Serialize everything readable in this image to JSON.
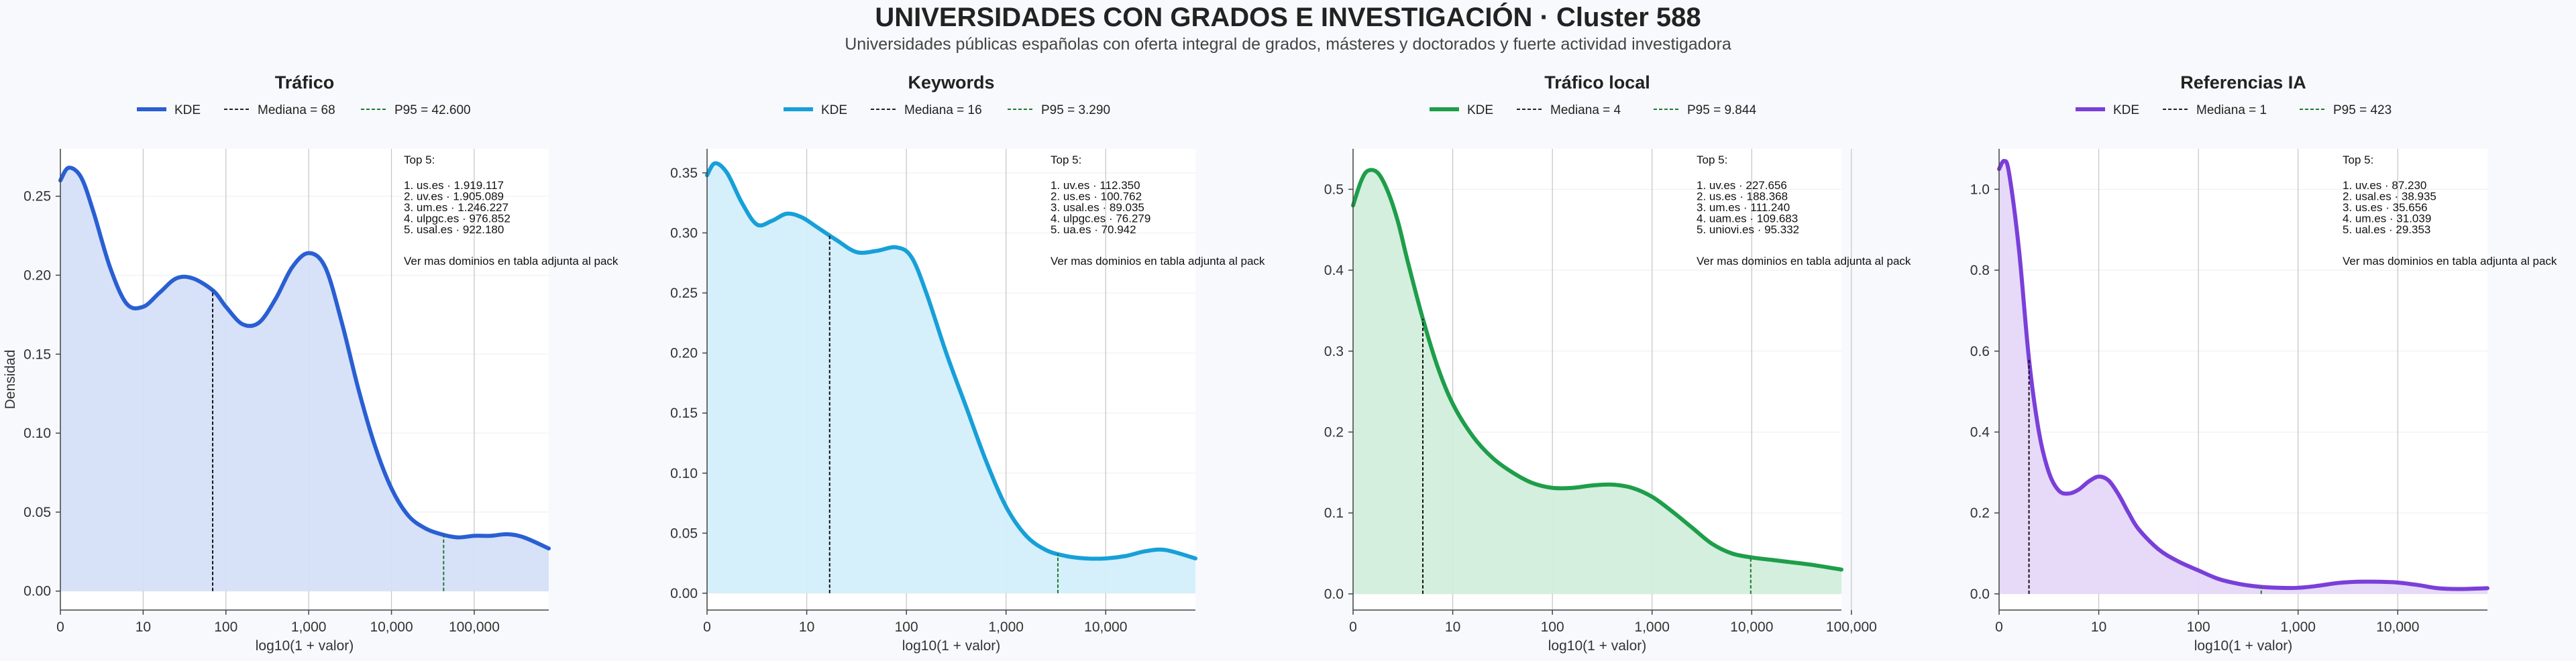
{
  "title": "UNIVERSIDADES CON GRADOS E INVESTIGACIÓN · Cluster 588",
  "subtitle": "Universidades públicas españolas con oferta integral de grados, másteres y doctorados y fuerte actividad investigadora",
  "chart_data": [
    {
      "type": "area",
      "title": "Tráfico",
      "xlabel": "log10(1 + valor)",
      "ylabel": "Densidad",
      "x_scale": "log10(1+x)",
      "xlim": [
        0,
        5.9
      ],
      "ylim": [
        -0.012,
        0.28
      ],
      "x_ticks": [
        0,
        1,
        2,
        3,
        4,
        5
      ],
      "x_tick_labels": [
        "0",
        "10",
        "100",
        "1,000",
        "10,000",
        "100,000"
      ],
      "y_ticks": [
        0,
        0.05,
        0.1,
        0.15,
        0.2,
        0.25
      ],
      "y_tick_labels": [
        "0.00",
        "0.05",
        "0.10",
        "0.15",
        "0.20",
        "0.25"
      ],
      "color": "#2a5fd3",
      "fill_color": "#d5e0f8",
      "legend": [
        "KDE",
        "Mediana = 68",
        "P95 = 42.600"
      ],
      "median_log": 1.84,
      "p95_log": 4.63,
      "series": [
        {
          "name": "KDE",
          "x": [
            0,
            0.1,
            0.25,
            0.4,
            0.6,
            0.8,
            1.0,
            1.2,
            1.4,
            1.6,
            1.85,
            2.0,
            2.2,
            2.4,
            2.6,
            2.8,
            3.0,
            3.2,
            3.4,
            3.6,
            3.8,
            4.0,
            4.2,
            4.4,
            4.6,
            4.8,
            5.0,
            5.2,
            5.4,
            5.6,
            5.9
          ],
          "y": [
            0.26,
            0.268,
            0.262,
            0.24,
            0.205,
            0.182,
            0.18,
            0.189,
            0.198,
            0.198,
            0.19,
            0.18,
            0.169,
            0.17,
            0.185,
            0.205,
            0.214,
            0.205,
            0.17,
            0.128,
            0.092,
            0.065,
            0.048,
            0.04,
            0.036,
            0.034,
            0.035,
            0.035,
            0.036,
            0.034,
            0.027
          ]
        }
      ],
      "top5_heading": "Top 5:",
      "top5": [
        "1. us.es · 1.919.117",
        "2. uv.es · 1.905.089",
        "3. um.es · 1.246.227",
        "4. ulpgc.es · 976.852",
        "5. usal.es · 922.180"
      ],
      "note": "Ver mas dominios en tabla adjunta al pack"
    },
    {
      "type": "area",
      "title": "Keywords",
      "xlabel": "log10(1 + valor)",
      "x_scale": "log10(1+x)",
      "xlim": [
        0,
        4.9
      ],
      "ylim": [
        -0.014,
        0.37
      ],
      "x_ticks": [
        0,
        1,
        2,
        3,
        4
      ],
      "x_tick_labels": [
        "0",
        "10",
        "100",
        "1,000",
        "10,000"
      ],
      "y_ticks": [
        0,
        0.05,
        0.1,
        0.15,
        0.2,
        0.25,
        0.3,
        0.35
      ],
      "y_tick_labels": [
        "0.00",
        "0.05",
        "0.10",
        "0.15",
        "0.20",
        "0.25",
        "0.30",
        "0.35"
      ],
      "color": "#17a0d8",
      "fill_color": "#d3eefb",
      "legend": [
        "KDE",
        "Mediana = 16",
        "P95 = 3.290"
      ],
      "median_log": 1.23,
      "p95_log": 3.52,
      "series": [
        {
          "name": "KDE",
          "x": [
            0,
            0.08,
            0.2,
            0.35,
            0.5,
            0.65,
            0.8,
            0.95,
            1.1,
            1.3,
            1.5,
            1.7,
            1.9,
            2.05,
            2.2,
            2.4,
            2.6,
            2.8,
            3.0,
            3.2,
            3.4,
            3.6,
            3.8,
            4.0,
            4.2,
            4.4,
            4.6,
            4.9
          ],
          "y": [
            0.348,
            0.358,
            0.35,
            0.325,
            0.307,
            0.31,
            0.316,
            0.313,
            0.305,
            0.294,
            0.284,
            0.285,
            0.288,
            0.28,
            0.25,
            0.2,
            0.155,
            0.11,
            0.072,
            0.048,
            0.036,
            0.031,
            0.029,
            0.029,
            0.031,
            0.035,
            0.036,
            0.029
          ]
        }
      ],
      "top5_heading": "Top 5:",
      "top5": [
        "1. uv.es · 112.350",
        "2. us.es · 100.762",
        "3. usal.es · 89.035",
        "4. ulpgc.es · 76.279",
        "5. ua.es · 70.942"
      ],
      "note": "Ver mas dominios en tabla adjunta al pack"
    },
    {
      "type": "area",
      "title": "Tráfico local",
      "xlabel": "log10(1 + valor)",
      "x_scale": "log10(1+x)",
      "xlim": [
        0,
        4.9
      ],
      "ylim": [
        -0.02,
        0.55
      ],
      "x_ticks": [
        0,
        1,
        2,
        3,
        4,
        5
      ],
      "x_tick_labels": [
        "0",
        "10",
        "100",
        "1,000",
        "10,000",
        "100,000"
      ],
      "y_ticks": [
        0,
        0.1,
        0.2,
        0.3,
        0.4,
        0.5
      ],
      "y_tick_labels": [
        "0.0",
        "0.1",
        "0.2",
        "0.3",
        "0.4",
        "0.5"
      ],
      "color": "#1e9e4a",
      "fill_color": "#d2eedb",
      "legend": [
        "KDE",
        "Mediana = 4",
        "P95 = 9.844"
      ],
      "median_log": 0.7,
      "p95_log": 3.99,
      "series": [
        {
          "name": "KDE",
          "x": [
            0,
            0.08,
            0.15,
            0.25,
            0.35,
            0.45,
            0.55,
            0.7,
            0.85,
            1.0,
            1.2,
            1.4,
            1.6,
            1.8,
            2.0,
            2.2,
            2.4,
            2.6,
            2.8,
            3.0,
            3.2,
            3.4,
            3.6,
            3.8,
            4.0,
            4.2,
            4.4,
            4.6,
            4.9
          ],
          "y": [
            0.48,
            0.51,
            0.523,
            0.52,
            0.497,
            0.46,
            0.41,
            0.34,
            0.28,
            0.235,
            0.195,
            0.168,
            0.15,
            0.137,
            0.131,
            0.131,
            0.134,
            0.135,
            0.131,
            0.12,
            0.102,
            0.082,
            0.062,
            0.05,
            0.045,
            0.042,
            0.039,
            0.036,
            0.03
          ]
        }
      ],
      "top5_heading": "Top 5:",
      "top5": [
        "1. uv.es · 227.656",
        "2. us.es · 188.368",
        "3. um.es · 111.240",
        "4. uam.es · 109.683",
        "5. uniovi.es · 95.332"
      ],
      "note": "Ver mas dominios en tabla adjunta al pack"
    },
    {
      "type": "area",
      "title": "Referencias IA",
      "xlabel": "log10(1 + valor)",
      "x_scale": "log10(1+x)",
      "xlim": [
        0,
        4.9
      ],
      "ylim": [
        -0.04,
        1.1
      ],
      "x_ticks": [
        0,
        1,
        2,
        3,
        4
      ],
      "x_tick_labels": [
        "0",
        "10",
        "100",
        "1,000",
        "10,000"
      ],
      "y_ticks": [
        0,
        0.2,
        0.4,
        0.6,
        0.8,
        1.0
      ],
      "y_tick_labels": [
        "0.0",
        "0.2",
        "0.4",
        "0.6",
        "0.8",
        "1.0"
      ],
      "color": "#7a3fd9",
      "fill_color": "#e5d8f8",
      "legend": [
        "KDE",
        "Mediana = 1",
        "P95 = 423"
      ],
      "median_log": 0.3,
      "p95_log": 2.63,
      "series": [
        {
          "name": "KDE",
          "x": [
            0,
            0.05,
            0.1,
            0.2,
            0.3,
            0.4,
            0.5,
            0.6,
            0.7,
            0.8,
            0.9,
            1.0,
            1.1,
            1.2,
            1.3,
            1.4,
            1.6,
            1.8,
            2.0,
            2.2,
            2.4,
            2.6,
            2.8,
            3.0,
            3.2,
            3.4,
            3.6,
            3.8,
            4.0,
            4.2,
            4.4,
            4.6,
            4.9
          ],
          "y": [
            1.05,
            1.07,
            1.04,
            0.85,
            0.58,
            0.4,
            0.3,
            0.255,
            0.248,
            0.258,
            0.278,
            0.29,
            0.28,
            0.245,
            0.2,
            0.16,
            0.11,
            0.08,
            0.058,
            0.037,
            0.025,
            0.018,
            0.015,
            0.015,
            0.02,
            0.027,
            0.03,
            0.03,
            0.028,
            0.022,
            0.014,
            0.012,
            0.014
          ]
        }
      ],
      "top5_heading": "Top 5:",
      "top5": [
        "1. uv.es · 87.230",
        "2. usal.es · 38.935",
        "3. us.es · 35.656",
        "4. um.es · 31.039",
        "5. ual.es · 29.353"
      ],
      "note": "Ver mas dominios en tabla adjunta al pack"
    }
  ]
}
